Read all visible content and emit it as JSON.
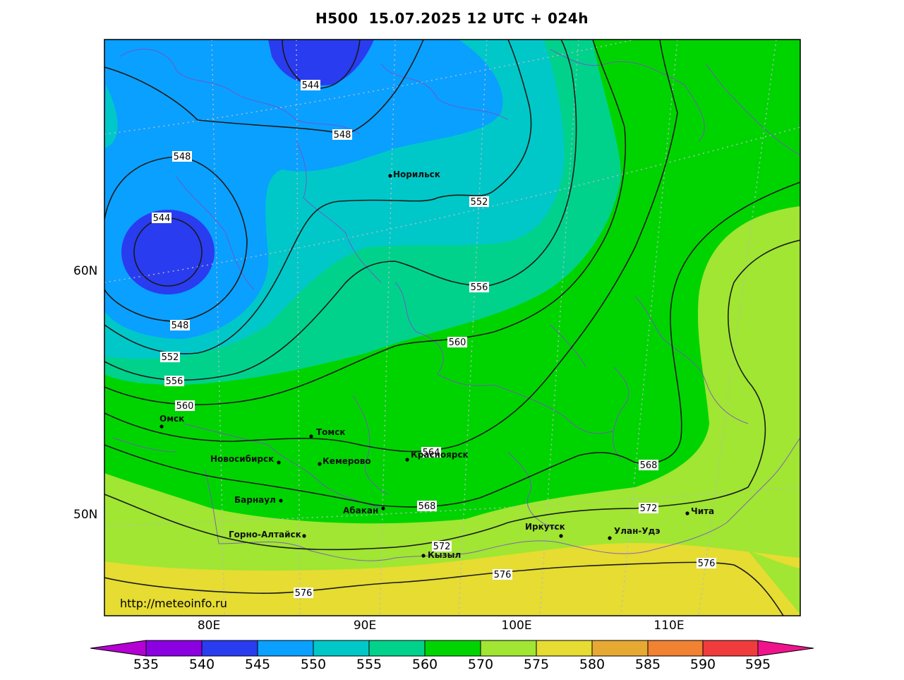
{
  "title": "H500  15.07.2025 12 UTC + 024h",
  "url": "http://meteoinfo.ru",
  "lat_labels": [
    "60N",
    "50N"
  ],
  "lon_labels": [
    "80E",
    "90E",
    "100E",
    "110E"
  ],
  "colorbar": {
    "ticks": [
      "535",
      "540",
      "545",
      "550",
      "555",
      "560",
      "570",
      "575",
      "580",
      "585",
      "590",
      "595"
    ],
    "colors": [
      "#8a00e0",
      "#2a3cf0",
      "#0aa0ff",
      "#00c8c8",
      "#00d28c",
      "#00d400",
      "#a0e632",
      "#e6dc32",
      "#e6aa32",
      "#f08232",
      "#f03c3c",
      "#f0148c"
    ]
  },
  "isolines": {
    "labels": [
      "544",
      "544",
      "548",
      "548",
      "548",
      "552",
      "552",
      "556",
      "556",
      "560",
      "560",
      "564",
      "568",
      "568",
      "572",
      "572",
      "576",
      "576",
      "576"
    ]
  },
  "cities": [
    {
      "name": "Норильск",
      "id": "norilsk"
    },
    {
      "name": "Омск",
      "id": "omsk"
    },
    {
      "name": "Томск",
      "id": "tomsk"
    },
    {
      "name": "Новосибирск",
      "id": "novosibirsk"
    },
    {
      "name": "Кемерово",
      "id": "kemerovo"
    },
    {
      "name": "Красноярск",
      "id": "krasnoyarsk"
    },
    {
      "name": "Барнаул",
      "id": "barnaul"
    },
    {
      "name": "Абакан",
      "id": "abakan"
    },
    {
      "name": "Горно-Алтайск",
      "id": "gorno-altaysk"
    },
    {
      "name": "Кызыл",
      "id": "kyzyl"
    },
    {
      "name": "Иркутск",
      "id": "irkutsk"
    },
    {
      "name": "Улан-Удэ",
      "id": "ulan-ude"
    },
    {
      "name": "Чита",
      "id": "chita"
    }
  ]
}
